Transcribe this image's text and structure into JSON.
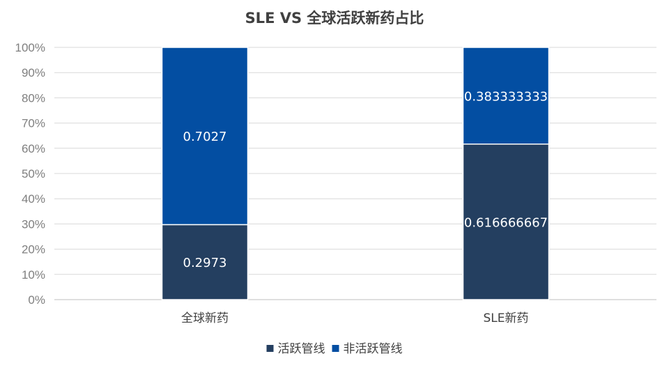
{
  "chart_data": {
    "type": "bar",
    "stacked": "percent",
    "title": "SLE VS 全球活跃新药占比",
    "categories": [
      "全球新药",
      "SLE新药"
    ],
    "series": [
      {
        "name": "活跃管线",
        "values": [
          0.2973,
          0.616666667
        ],
        "labels": [
          "0.2973",
          "0.616666667"
        ],
        "color": "#243f60"
      },
      {
        "name": "非活跃管线",
        "values": [
          0.7027,
          0.383333333
        ],
        "labels": [
          "0.7027",
          "0.383333333"
        ],
        "color": "#034ea2"
      }
    ],
    "ylim": [
      0,
      1
    ],
    "yticks": [
      "0%",
      "10%",
      "20%",
      "30%",
      "40%",
      "50%",
      "60%",
      "70%",
      "80%",
      "90%",
      "100%"
    ],
    "grid": true,
    "legend_position": "bottom"
  }
}
